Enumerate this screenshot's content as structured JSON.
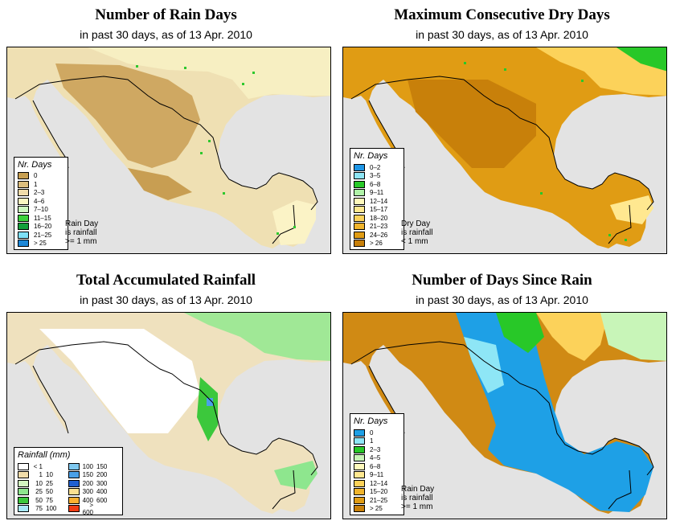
{
  "panels": [
    {
      "title": "Number of Rain Days",
      "subtitle": "in past 30 days, as of  13 Apr. 2010",
      "legend_title": "Nr. Days",
      "legend": [
        {
          "label": "0",
          "color": "#c8a052"
        },
        {
          "label": "1",
          "color": "#dcbe7e"
        },
        {
          "label": "2–3",
          "color": "#f0dcaa"
        },
        {
          "label": "4–6",
          "color": "#fbf6c2"
        },
        {
          "label": "7–10",
          "color": "#ccf7bf"
        },
        {
          "label": "11–15",
          "color": "#3cd23c"
        },
        {
          "label": "16–20",
          "color": "#14a03c"
        },
        {
          "label": "21–25",
          "color": "#7ee0f6"
        },
        {
          "label": "> 25",
          "color": "#1e88d8"
        }
      ],
      "note": [
        "Rain Day",
        "is rainfall",
        ">= 1 mm"
      ]
    },
    {
      "title": "Maximum Consecutive Dry Days",
      "subtitle": "in past 30 days, as of  13 Apr. 2010",
      "legend_title": "Nr. Days",
      "legend": [
        {
          "label": "0–2",
          "color": "#1e96e6"
        },
        {
          "label": "3–5",
          "color": "#8ee6f6"
        },
        {
          "label": "6–8",
          "color": "#28c828"
        },
        {
          "label": "9–11",
          "color": "#b0f2a8"
        },
        {
          "label": "12–14",
          "color": "#fff9bc"
        },
        {
          "label": "15–17",
          "color": "#ffe890"
        },
        {
          "label": "18–20",
          "color": "#fcd25a"
        },
        {
          "label": "21–23",
          "color": "#f0b42c"
        },
        {
          "label": "24–26",
          "color": "#e09c14"
        },
        {
          "label": "> 26",
          "color": "#c8800a"
        }
      ],
      "note": [
        "Dry Day",
        "is rainfall",
        "< 1 mm"
      ]
    },
    {
      "title": "Total Accumulated Rainfall",
      "subtitle": "in past 30 days, as of  13 Apr. 2010",
      "legend_title": "Rainfall (mm)",
      "legend_left": [
        {
          "lo": "< 1",
          "hi": "",
          "color": "#ffffff"
        },
        {
          "lo": "1",
          "hi": "10",
          "color": "#f0dcaa"
        },
        {
          "lo": "10",
          "hi": "25",
          "color": "#d2f5c0"
        },
        {
          "lo": "25",
          "hi": "50",
          "color": "#8ee68e"
        },
        {
          "lo": "50",
          "hi": "75",
          "color": "#3cc83c"
        },
        {
          "lo": "75",
          "hi": "100",
          "color": "#a8e8f8"
        }
      ],
      "legend_right": [
        {
          "lo": "100",
          "hi": "150",
          "color": "#7ec8f0"
        },
        {
          "lo": "150",
          "hi": "200",
          "color": "#4aa0e8"
        },
        {
          "lo": "200",
          "hi": "300",
          "color": "#2060d0"
        },
        {
          "lo": "300",
          "hi": "400",
          "color": "#fce090"
        },
        {
          "lo": "400",
          "hi": "600",
          "color": "#fcb030"
        },
        {
          "lo": "> 600",
          "hi": "",
          "color": "#f03c14"
        }
      ]
    },
    {
      "title": "Number of Days Since Rain",
      "subtitle": "in past 30 days, as of  13 Apr. 2010",
      "legend_title": "Nr. Days",
      "legend": [
        {
          "label": "0",
          "color": "#1ea0e6"
        },
        {
          "label": "1",
          "color": "#8ee6f6"
        },
        {
          "label": "2–3",
          "color": "#28c828"
        },
        {
          "label": "4–5",
          "color": "#c8f5b8"
        },
        {
          "label": "6–8",
          "color": "#fff9bc"
        },
        {
          "label": "9–11",
          "color": "#ffe890"
        },
        {
          "label": "12–14",
          "color": "#fcd25a"
        },
        {
          "label": "15–20",
          "color": "#f0b42c"
        },
        {
          "label": "21–25",
          "color": "#e09c14"
        },
        {
          "label": "> 25",
          "color": "#c8800a"
        }
      ],
      "note": [
        "Rain Day",
        "is rainfall",
        ">= 1 mm"
      ]
    }
  ]
}
